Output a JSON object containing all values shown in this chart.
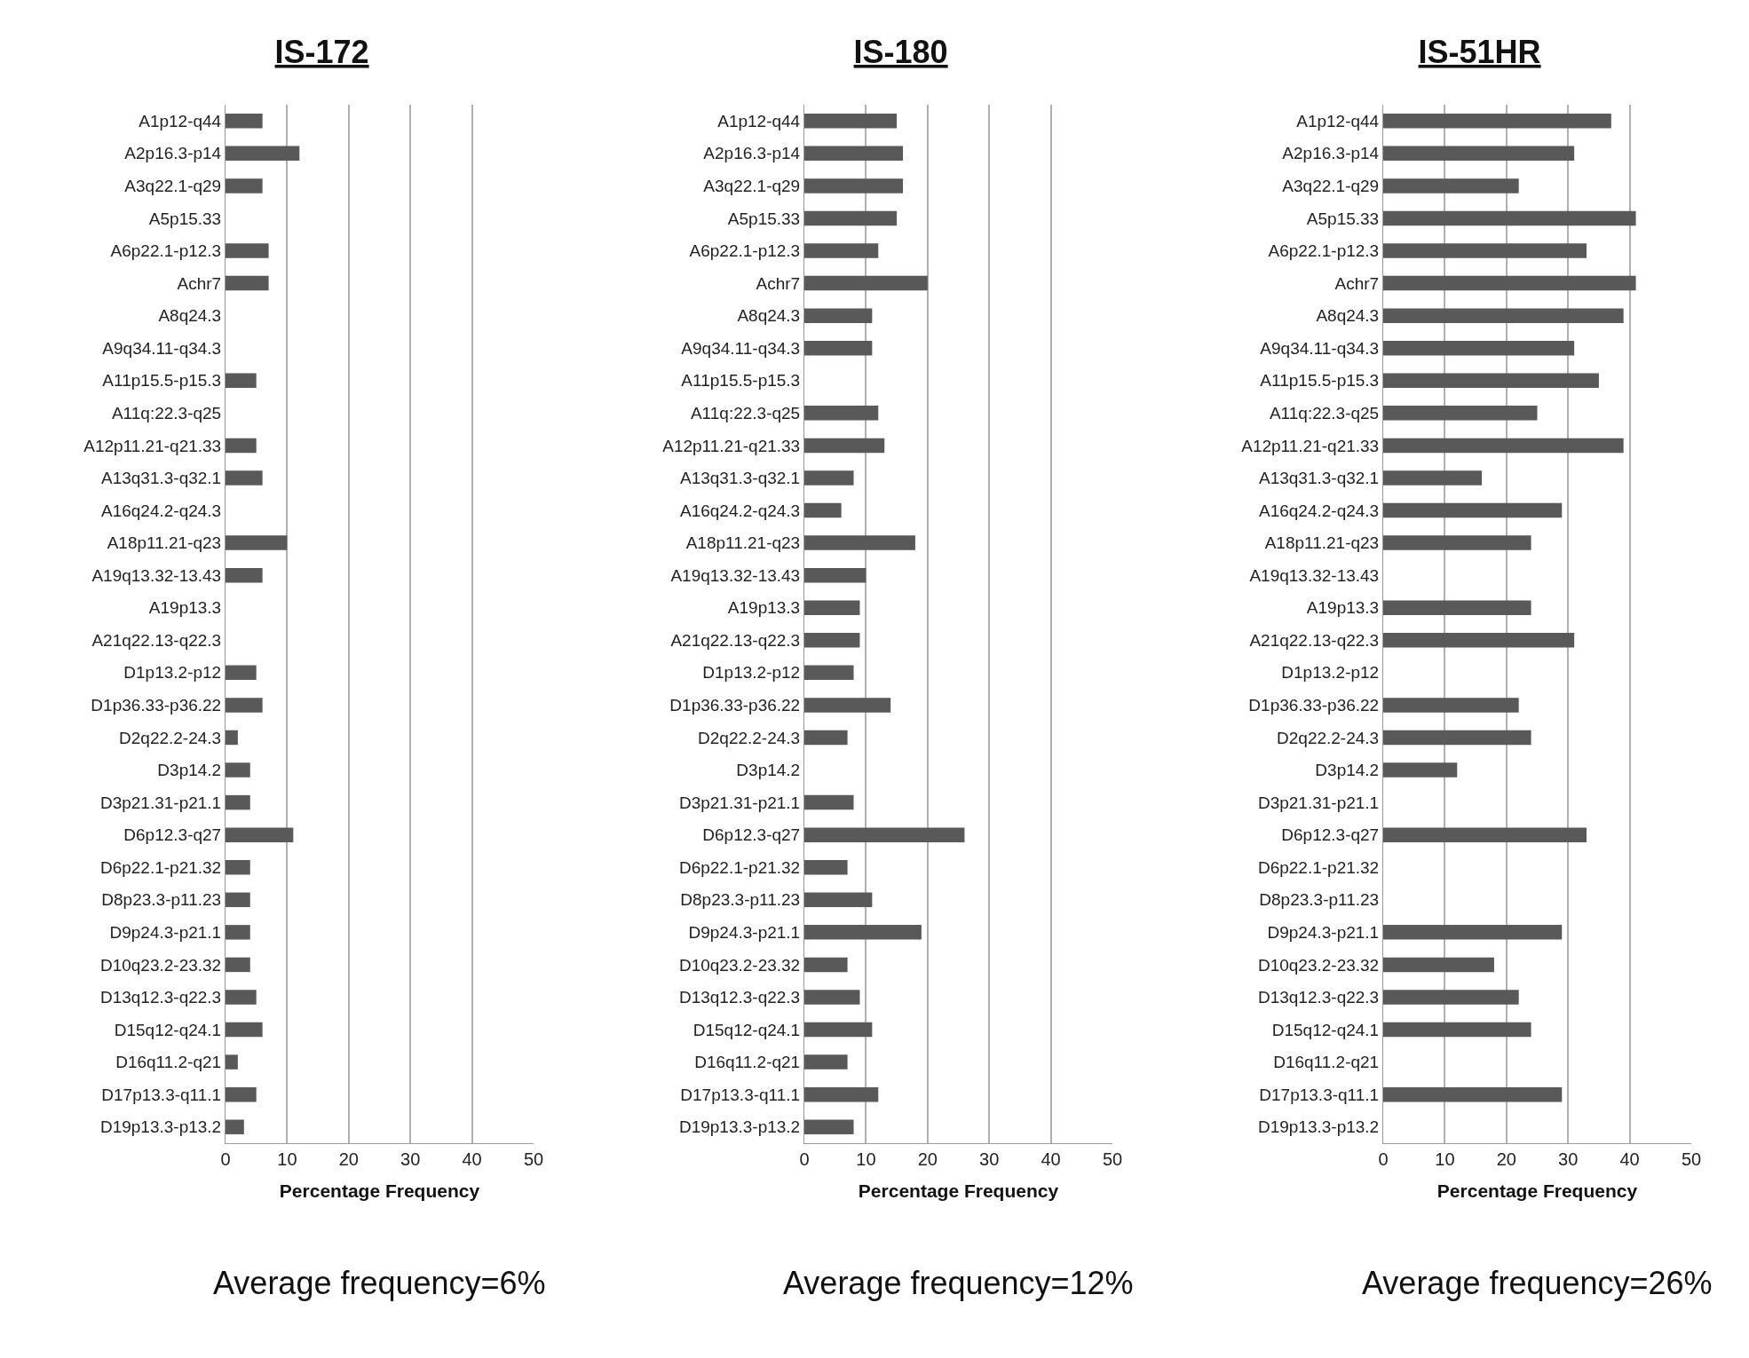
{
  "chart_data": [
    {
      "type": "bar",
      "orientation": "horizontal",
      "title": "IS-172",
      "xlabel": "Percentage Frequency",
      "categories": [
        "A1p12-q44",
        "A2p16.3-p14",
        "A3q22.1-q29",
        "A5p15.33",
        "A6p22.1-p12.3",
        "Achr7",
        "A8q24.3",
        "A9q34.11-q34.3",
        "A11p15.5-p15.3",
        "A11q:22.3-q25",
        "A12p11.21-q21.33",
        "A13q31.3-q32.1",
        "A16q24.2-q24.3",
        "A18p11.21-q23",
        "A19q13.32-13.43",
        "A19p13.3",
        "A21q22.13-q22.3",
        "D1p13.2-p12",
        "D1p36.33-p36.22",
        "D2q22.2-24.3",
        "D3p14.2",
        "D3p21.31-p21.1",
        "D6p12.3-q27",
        "D6p22.1-p21.32",
        "D8p23.3-p11.23",
        "D9p24.3-p21.1",
        "D10q23.2-23.32",
        "D13q12.3-q22.3",
        "D15q12-q24.1",
        "D16q11.2-q21",
        "D17p13.3-q11.1",
        "D19p13.3-p13.2"
      ],
      "values": [
        6,
        12,
        6,
        0,
        7,
        7,
        0,
        0,
        5,
        0,
        5,
        6,
        0,
        10,
        6,
        0,
        0,
        5,
        6,
        2,
        4,
        4,
        11,
        4,
        4,
        4,
        4,
        5,
        6,
        2,
        5,
        3
      ],
      "color": "#595959",
      "xlim": [
        0,
        50
      ],
      "xticks": [
        0,
        10,
        20,
        30,
        40,
        50
      ],
      "grid": "x",
      "annotations": [
        "Average frequency=6%"
      ]
    },
    {
      "type": "bar",
      "orientation": "horizontal",
      "title": "IS-180",
      "xlabel": "Percentage Frequency",
      "categories": [
        "A1p12-q44",
        "A2p16.3-p14",
        "A3q22.1-q29",
        "A5p15.33",
        "A6p22.1-p12.3",
        "Achr7",
        "A8q24.3",
        "A9q34.11-q34.3",
        "A11p15.5-p15.3",
        "A11q:22.3-q25",
        "A12p11.21-q21.33",
        "A13q31.3-q32.1",
        "A16q24.2-q24.3",
        "A18p11.21-q23",
        "A19q13.32-13.43",
        "A19p13.3",
        "A21q22.13-q22.3",
        "D1p13.2-p12",
        "D1p36.33-p36.22",
        "D2q22.2-24.3",
        "D3p14.2",
        "D3p21.31-p21.1",
        "D6p12.3-q27",
        "D6p22.1-p21.32",
        "D8p23.3-p11.23",
        "D9p24.3-p21.1",
        "D10q23.2-23.32",
        "D13q12.3-q22.3",
        "D15q12-q24.1",
        "D16q11.2-q21",
        "D17p13.3-q11.1",
        "D19p13.3-p13.2"
      ],
      "values": [
        15,
        16,
        16,
        15,
        12,
        20,
        11,
        11,
        0,
        12,
        13,
        8,
        6,
        18,
        10,
        9,
        9,
        8,
        14,
        7,
        0,
        8,
        26,
        7,
        11,
        19,
        7,
        9,
        11,
        7,
        12,
        8
      ],
      "color": "#595959",
      "xlim": [
        0,
        50
      ],
      "xticks": [
        0,
        10,
        20,
        30,
        40,
        50
      ],
      "grid": "x",
      "annotations": [
        "Average frequency=12%"
      ]
    },
    {
      "type": "bar",
      "orientation": "horizontal",
      "title": "IS-51HR",
      "xlabel": "Percentage Frequency",
      "categories": [
        "A1p12-q44",
        "A2p16.3-p14",
        "A3q22.1-q29",
        "A5p15.33",
        "A6p22.1-p12.3",
        "Achr7",
        "A8q24.3",
        "A9q34.11-q34.3",
        "A11p15.5-p15.3",
        "A11q:22.3-q25",
        "A12p11.21-q21.33",
        "A13q31.3-q32.1",
        "A16q24.2-q24.3",
        "A18p11.21-q23",
        "A19q13.32-13.43",
        "A19p13.3",
        "A21q22.13-q22.3",
        "D1p13.2-p12",
        "D1p36.33-p36.22",
        "D2q22.2-24.3",
        "D3p14.2",
        "D3p21.31-p21.1",
        "D6p12.3-q27",
        "D6p22.1-p21.32",
        "D8p23.3-p11.23",
        "D9p24.3-p21.1",
        "D10q23.2-23.32",
        "D13q12.3-q22.3",
        "D15q12-q24.1",
        "D16q11.2-q21",
        "D17p13.3-q11.1",
        "D19p13.3-p13.2"
      ],
      "values": [
        37,
        31,
        22,
        41,
        33,
        41,
        39,
        31,
        35,
        25,
        39,
        16,
        29,
        24,
        0,
        24,
        31,
        0,
        22,
        24,
        12,
        0,
        33,
        0,
        0,
        29,
        18,
        22,
        24,
        0,
        29,
        0
      ],
      "color": "#595959",
      "xlim": [
        0,
        50
      ],
      "xticks": [
        0,
        10,
        20,
        30,
        40,
        50
      ],
      "grid": "x",
      "annotations": [
        "Average frequency=26%"
      ]
    }
  ]
}
